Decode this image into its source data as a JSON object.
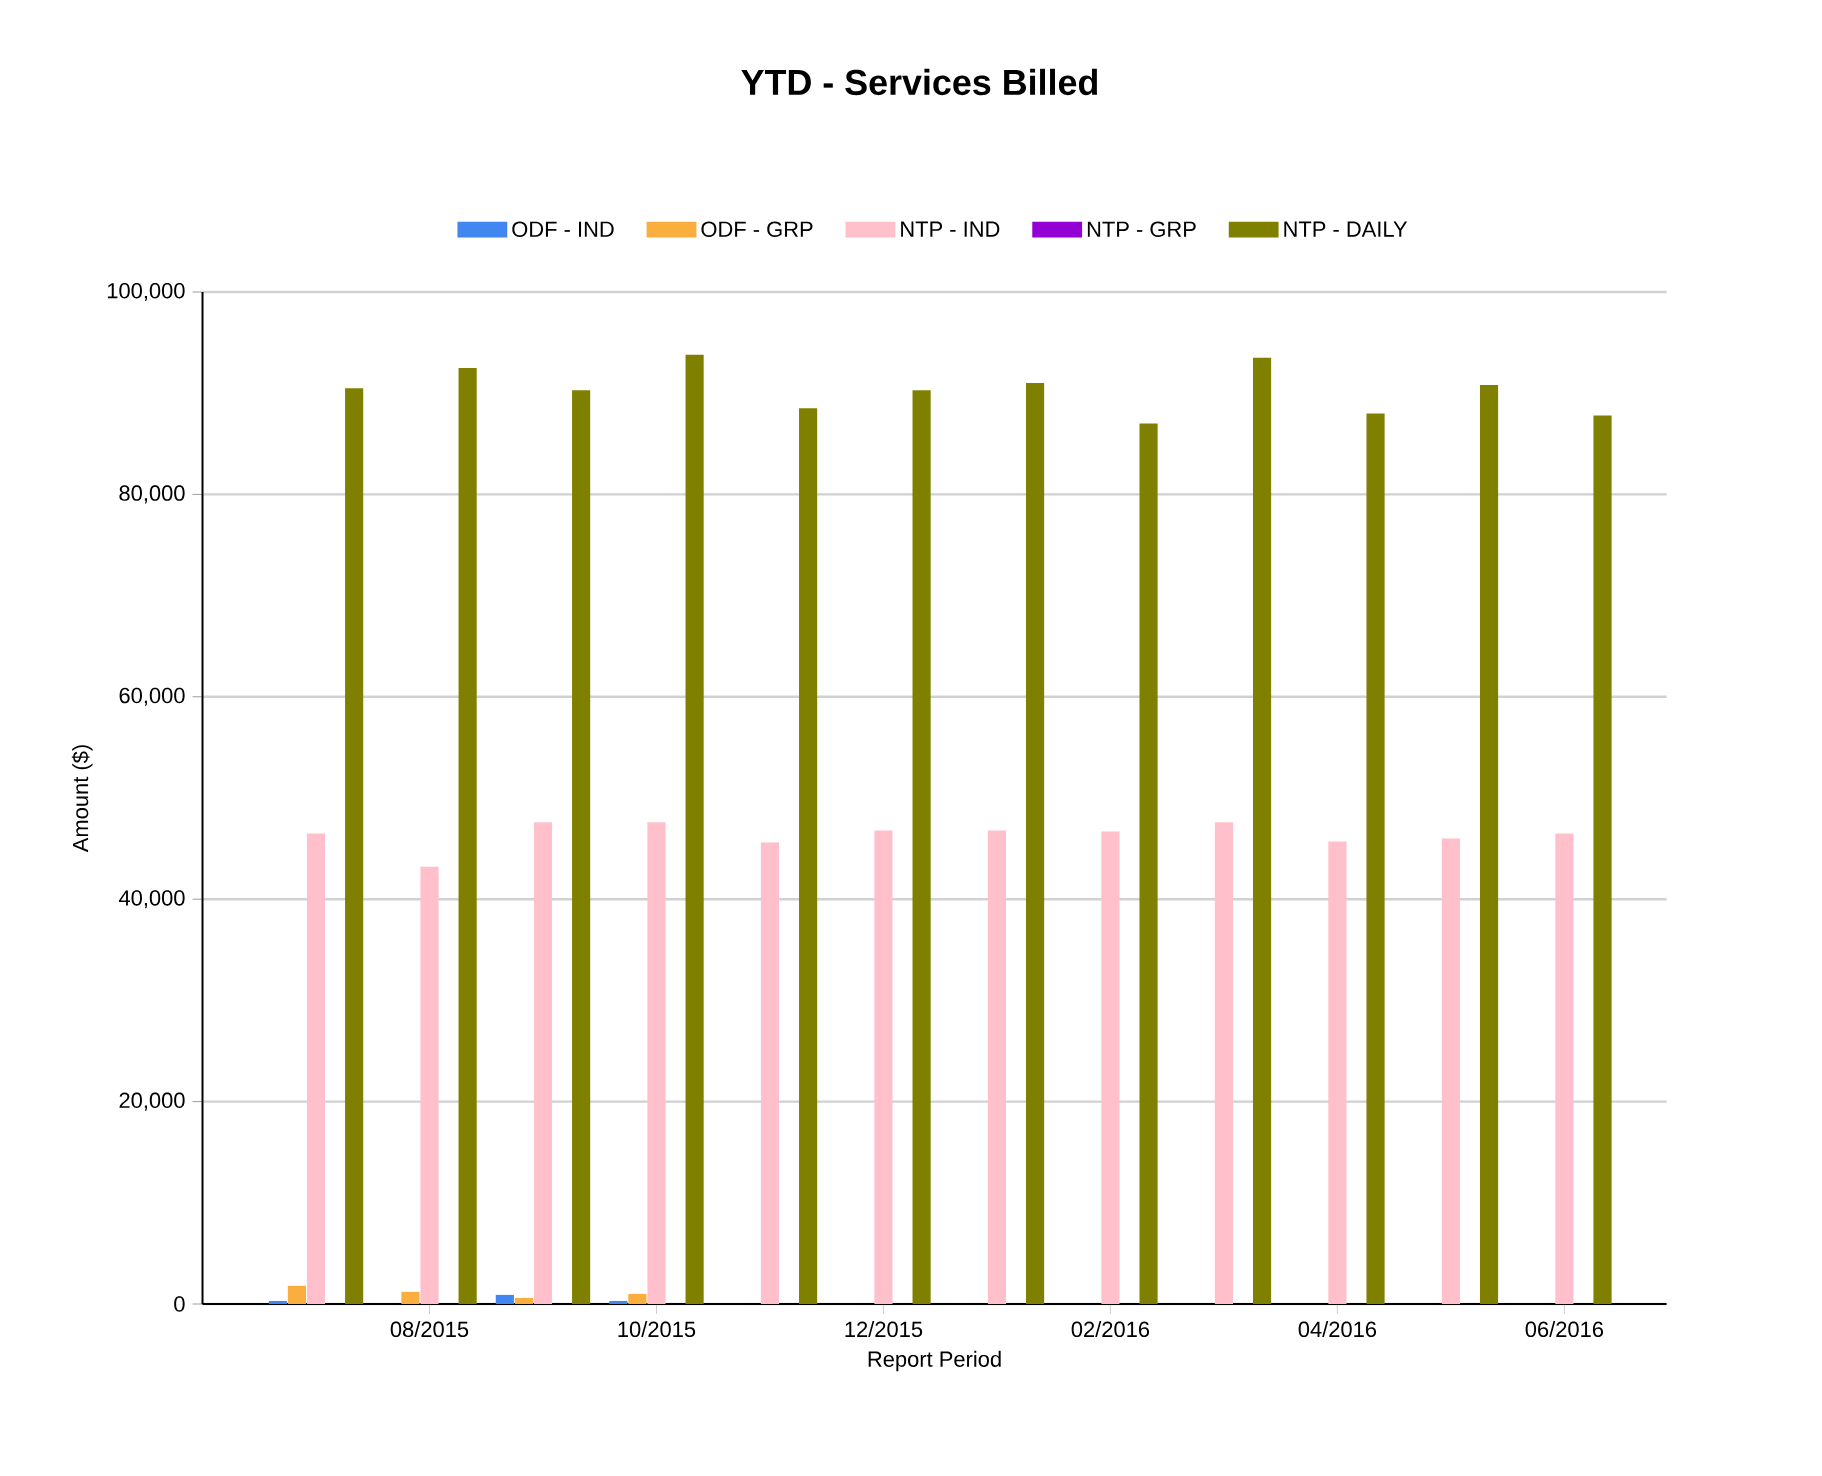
{
  "chart_data": {
    "type": "bar",
    "title": "YTD - Services Billed",
    "xlabel": "Report Period",
    "ylabel": "Amount ($)",
    "categories": [
      null,
      "08/2015",
      null,
      "10/2015",
      null,
      "12/2015",
      null,
      "02/2016",
      null,
      "04/2016",
      null,
      "06/2016"
    ],
    "series": [
      {
        "name": "ODF - IND",
        "color": "#4287ef",
        "values": [
          300,
          0,
          900,
          300,
          0,
          0,
          0,
          0,
          0,
          0,
          0,
          0
        ]
      },
      {
        "name": "ODF - GRP",
        "color": "#faae3e",
        "values": [
          1800,
          1200,
          600,
          1000,
          0,
          0,
          0,
          0,
          0,
          0,
          0,
          0
        ]
      },
      {
        "name": "NTP - IND",
        "color": "#ffc0cb",
        "values": [
          46500,
          43200,
          47600,
          47600,
          45600,
          46800,
          46800,
          46700,
          47600,
          45700,
          46000,
          46500
        ]
      },
      {
        "name": "NTP - GRP",
        "color": "#9400d3",
        "values": [
          0,
          0,
          0,
          0,
          0,
          0,
          0,
          0,
          0,
          0,
          0,
          0
        ]
      },
      {
        "name": "NTP - DAILY",
        "color": "#808000",
        "values": [
          90500,
          92500,
          90300,
          93800,
          88500,
          90300,
          91000,
          87000,
          93500,
          88000,
          90800,
          87800
        ]
      }
    ],
    "ylim": [
      0,
      100000
    ],
    "yticks": [
      {
        "value": 0,
        "label": "0"
      },
      {
        "value": 20000,
        "label": "20,000"
      },
      {
        "value": 40000,
        "label": "40,000"
      },
      {
        "value": 60000,
        "label": "60,000"
      },
      {
        "value": 80000,
        "label": "80,000"
      },
      {
        "value": 100000,
        "label": "100,000"
      }
    ],
    "grid": "y",
    "legend": "top"
  }
}
